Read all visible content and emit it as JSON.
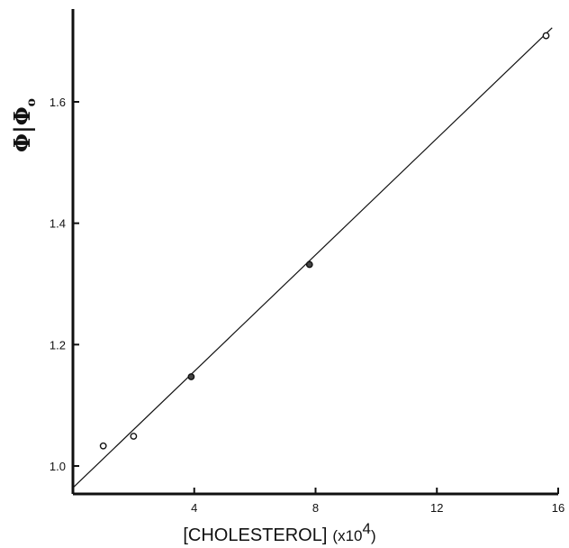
{
  "chart_data": {
    "type": "scatter",
    "xlabel": "[CHOLESTEROL]",
    "xlabel_unit": "(x10",
    "xlabel_unit_exp": "4",
    "xlabel_unit_close": ")",
    "ylabel": "Φ|Φ",
    "ylabel_sub": "o",
    "xlim": [
      0,
      16
    ],
    "ylim": [
      0.96,
      1.76
    ],
    "x_ticks": [
      {
        "value": 4,
        "label": "4"
      },
      {
        "value": 8,
        "label": "8"
      },
      {
        "value": 12,
        "label": "12"
      },
      {
        "value": 16,
        "label": "16"
      }
    ],
    "y_ticks": [
      {
        "value": 1.0,
        "label": "1.0"
      },
      {
        "value": 1.2,
        "label": "1.2"
      },
      {
        "value": 1.4,
        "label": "1.4"
      },
      {
        "value": 1.6,
        "label": "1.6"
      }
    ],
    "points": [
      {
        "x": 1.0,
        "y": 1.033,
        "style": "open"
      },
      {
        "x": 2.0,
        "y": 1.049,
        "style": "open"
      },
      {
        "x": 3.9,
        "y": 1.147,
        "style": "filled"
      },
      {
        "x": 7.8,
        "y": 1.332,
        "style": "filled"
      },
      {
        "x": 15.6,
        "y": 1.709,
        "style": "open"
      }
    ],
    "fit_line": {
      "x": [
        0,
        15.8
      ],
      "y": [
        0.964,
        1.722
      ]
    },
    "grid": false,
    "legend": "none"
  }
}
